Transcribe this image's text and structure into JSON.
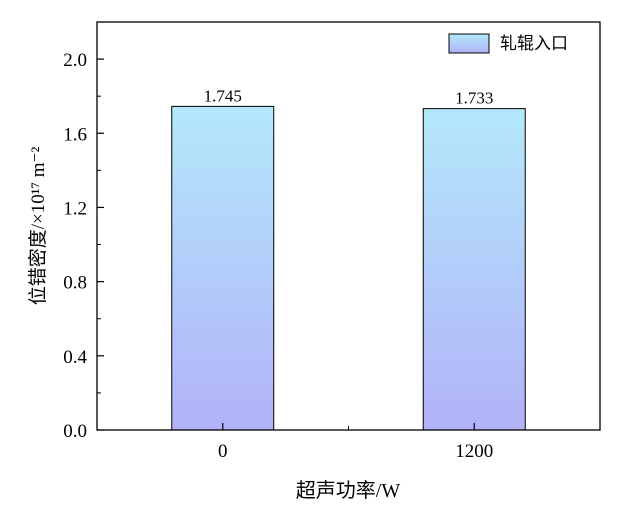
{
  "chart_data": {
    "type": "bar",
    "categories": [
      "0",
      "1200"
    ],
    "values": [
      1.745,
      1.733
    ],
    "data_labels": [
      "1.745",
      "1.733"
    ],
    "xlabel": "超声功率/W",
    "ylabel": "位错密度/×10¹⁷ m⁻²",
    "ylim": [
      0,
      2.2
    ],
    "yticks": [
      0.0,
      0.4,
      0.8,
      1.2,
      1.6,
      2.0
    ],
    "ytick_labels": [
      "0.0",
      "0.4",
      "0.8",
      "1.2",
      "1.6",
      "2.0"
    ],
    "legend": {
      "label": "轧辊入口",
      "placement": "top-right"
    },
    "grid": false,
    "colors": {
      "bar_top": "#b3e8fb",
      "bar_bottom": "#b2b2f8",
      "bar_edge": "#000000"
    }
  }
}
